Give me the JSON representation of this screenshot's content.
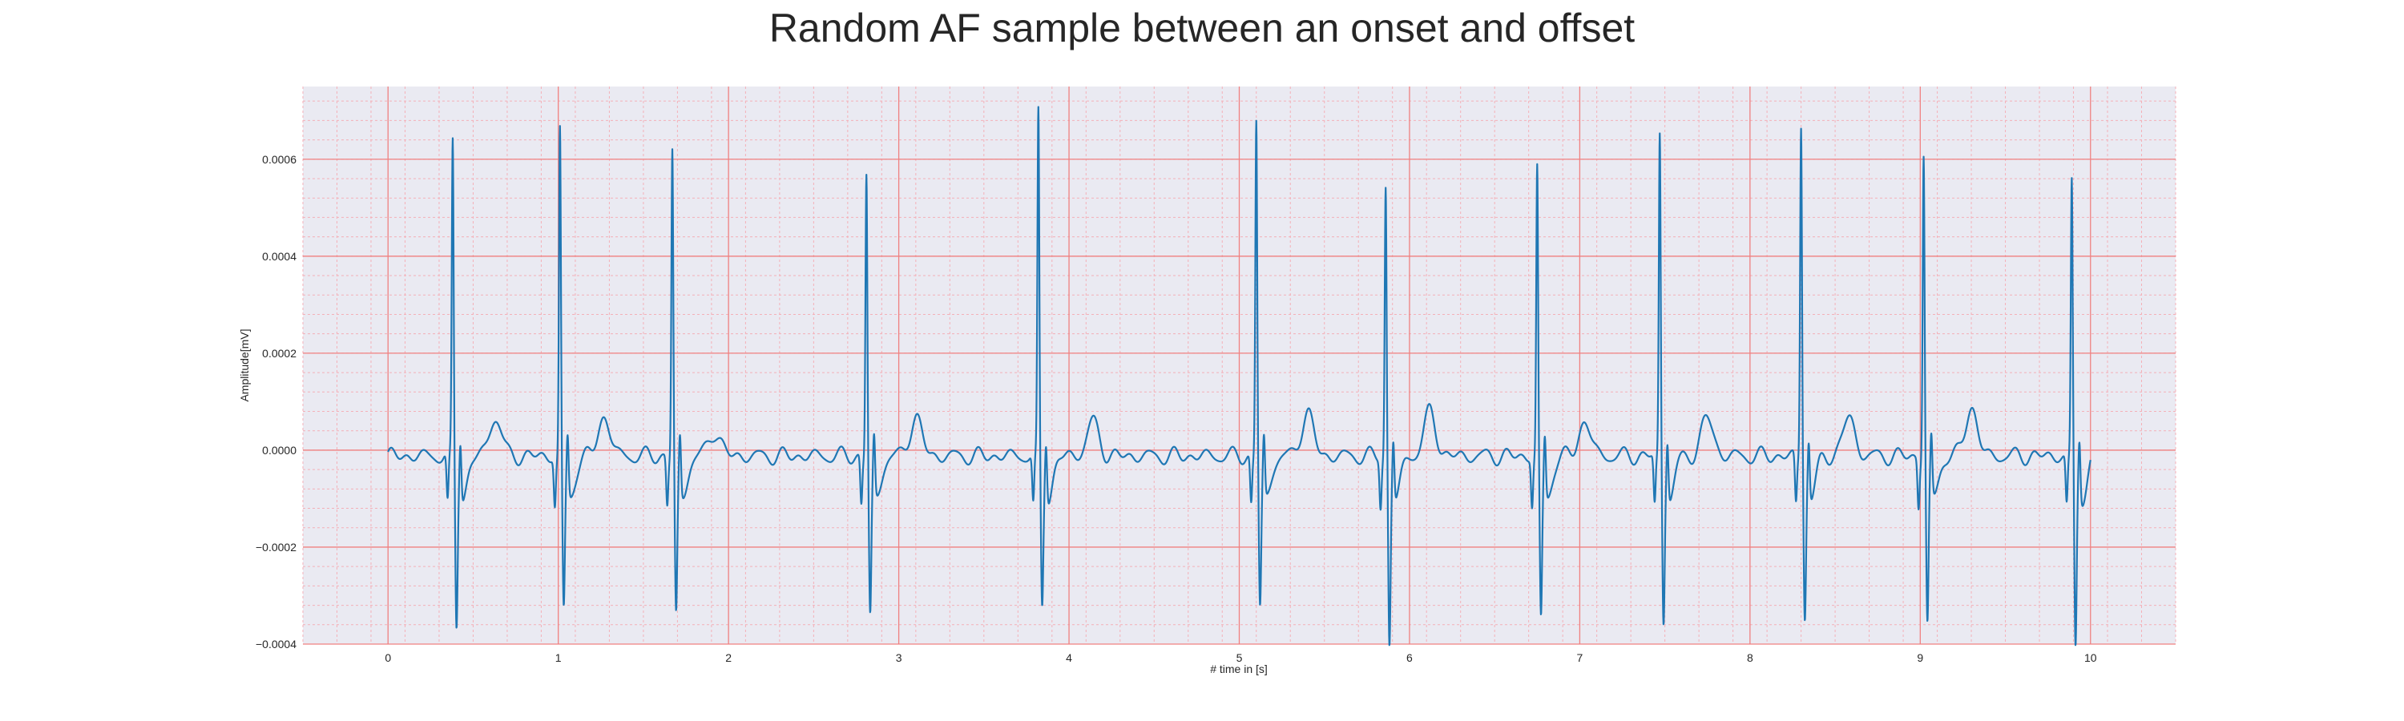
{
  "chart_data": {
    "type": "line",
    "title": "Random AF sample between an onset and offset",
    "xlabel": "# time in [s]",
    "ylabel": "Amplitude[mV]",
    "xlim": [
      -0.5,
      10.5
    ],
    "ylim": [
      -0.0004,
      0.00075
    ],
    "xticks": [
      0,
      1,
      2,
      3,
      4,
      5,
      6,
      7,
      8,
      9,
      10
    ],
    "yticks": [
      -0.0004,
      -0.0002,
      0.0,
      0.0002,
      0.0004,
      0.0006
    ],
    "ytick_labels": [
      "−0.0004",
      "−0.0002",
      "0.0000",
      "0.0002",
      "0.0004",
      "0.0006"
    ],
    "grid": "major and minor (red)",
    "colors": {
      "line": "#1f77b4",
      "plot_background": "#eaeaf2",
      "major_grid": "#f08080",
      "minor_grid": "#f4b0b8",
      "text": "#262626"
    },
    "beats": [
      {
        "t": 0.38,
        "r": 0.00066,
        "s": -0.0003
      },
      {
        "t": 1.01,
        "r": 0.00069,
        "s": -0.00027
      },
      {
        "t": 1.67,
        "r": 0.00065,
        "s": -0.00028
      },
      {
        "t": 2.81,
        "r": 0.0006,
        "s": -0.00028
      },
      {
        "t": 3.82,
        "r": 0.00072,
        "s": -0.00026
      },
      {
        "t": 5.1,
        "r": 0.00071,
        "s": -0.00026
      },
      {
        "t": 5.86,
        "r": 0.00057,
        "s": -0.00034
      },
      {
        "t": 6.75,
        "r": 0.00061,
        "s": -0.00029
      },
      {
        "t": 7.47,
        "r": 0.00068,
        "s": -0.00029
      },
      {
        "t": 8.3,
        "r": 0.0007,
        "s": -0.00028
      },
      {
        "t": 9.02,
        "r": 0.00064,
        "s": -0.0003
      },
      {
        "t": 9.89,
        "r": 0.00058,
        "s": -0.00035
      }
    ],
    "t_waves": [
      {
        "t": 0.63,
        "a": 5e-05
      },
      {
        "t": 1.27,
        "a": 5e-05
      },
      {
        "t": 1.92,
        "a": 2e-05
      },
      {
        "t": 3.1,
        "a": 5e-05
      },
      {
        "t": 4.14,
        "a": 4e-05
      },
      {
        "t": 5.4,
        "a": 6e-05
      },
      {
        "t": 6.12,
        "a": 6e-05
      },
      {
        "t": 7.03,
        "a": 4e-05
      },
      {
        "t": 7.75,
        "a": 5e-05
      },
      {
        "t": 8.58,
        "a": 5e-05
      },
      {
        "t": 9.3,
        "a": 7e-05
      }
    ],
    "t_end": 10.0
  }
}
